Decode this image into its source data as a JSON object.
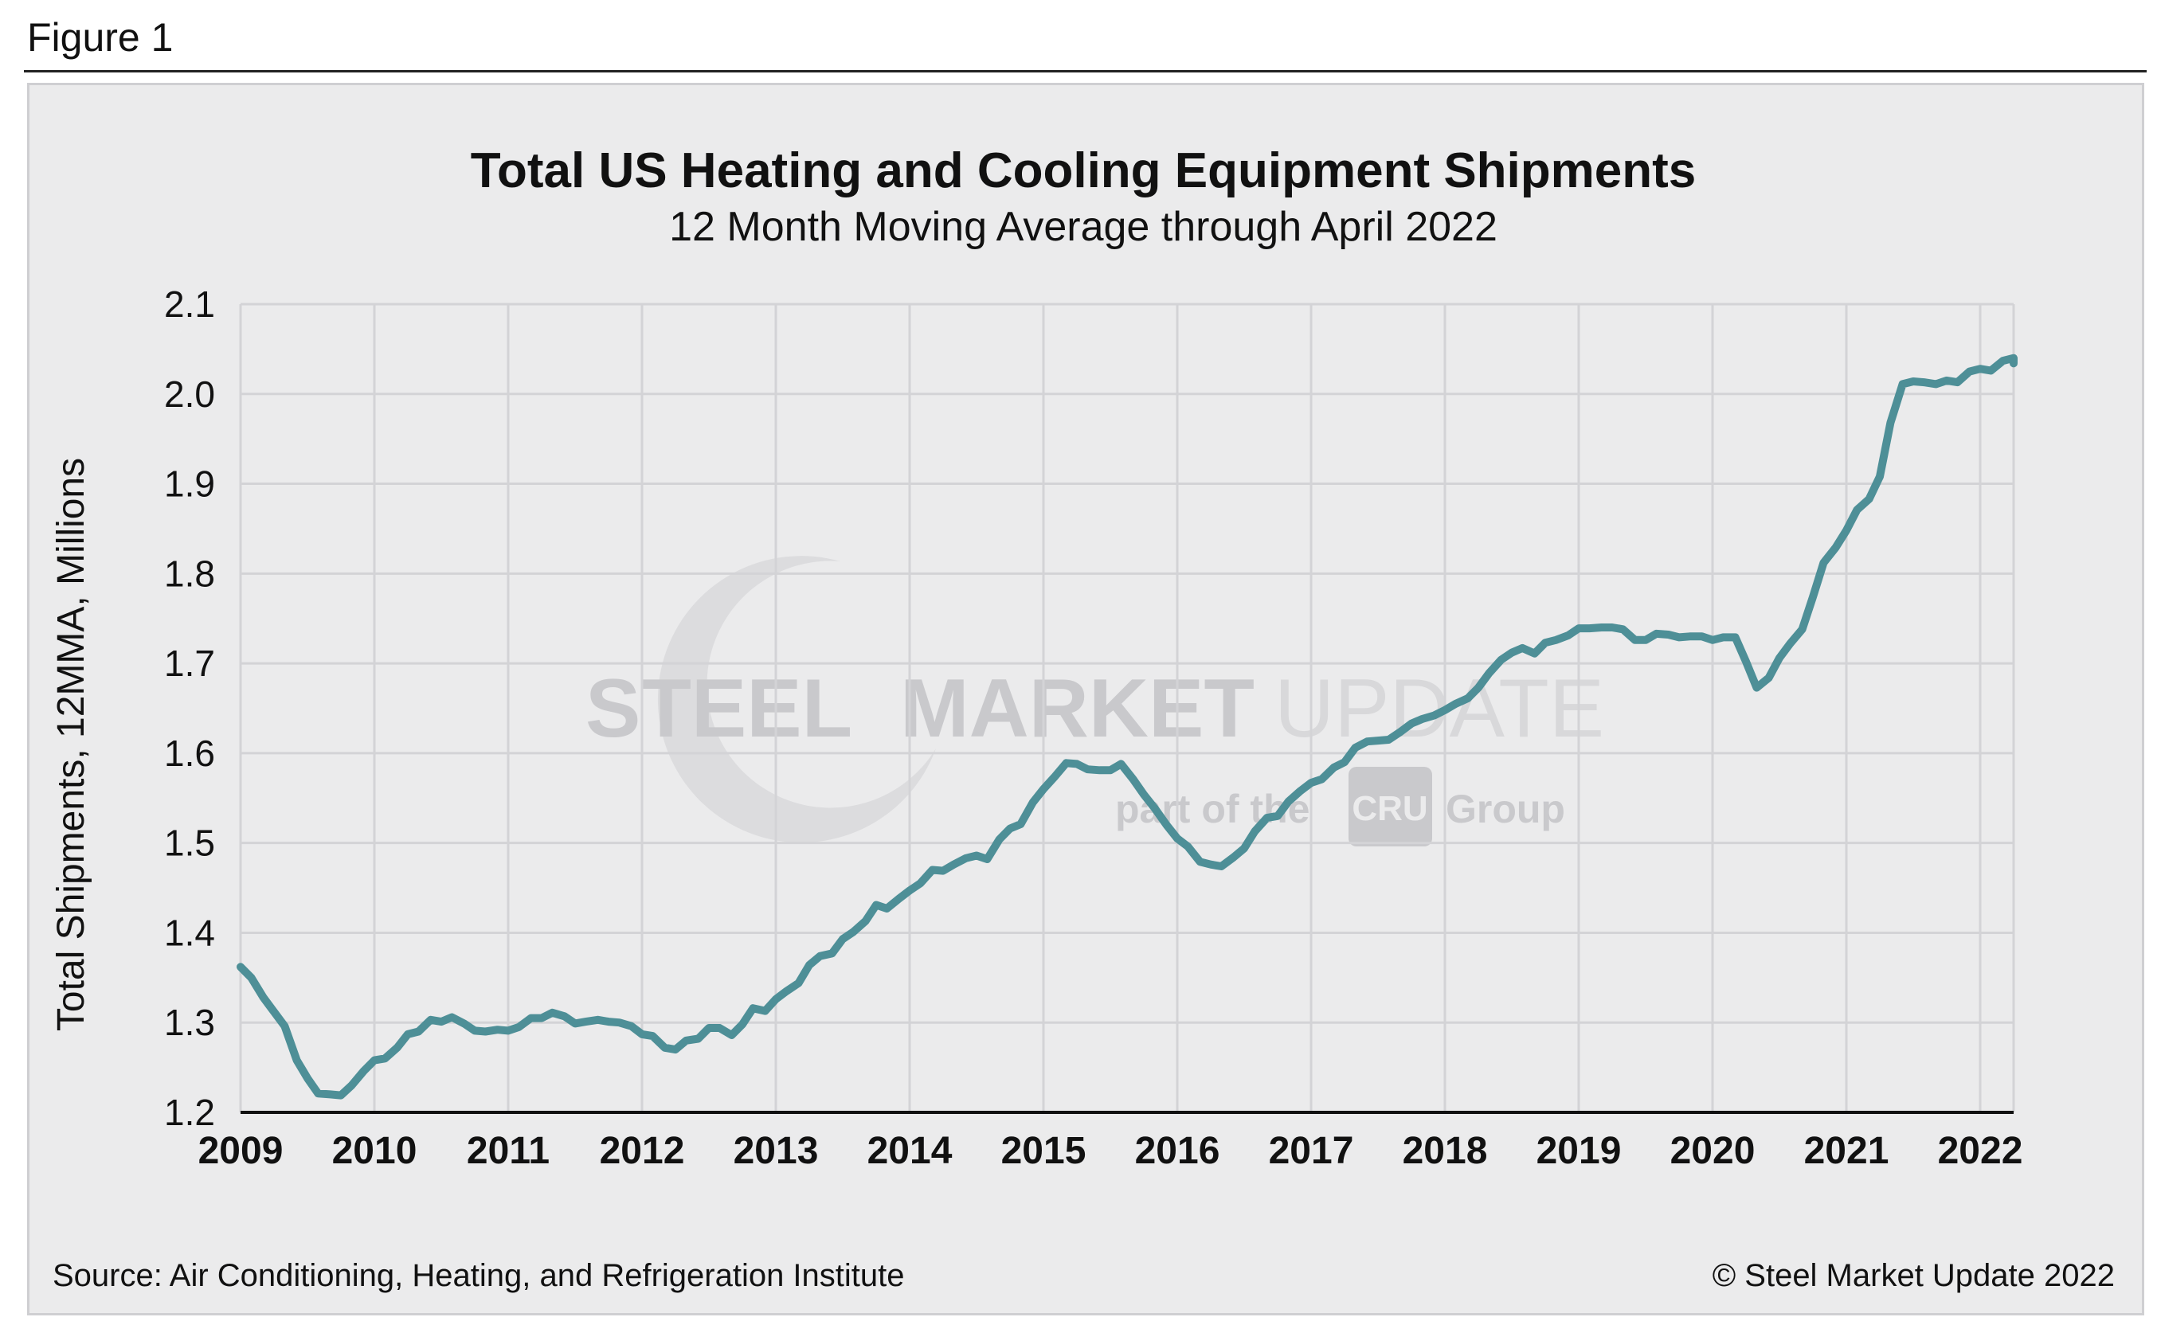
{
  "figure_label": "Figure 1",
  "footer": {
    "source": "Source: Air Conditioning, Heating, and Refrigeration Institute",
    "copyright": "© Steel Market Update 2022"
  },
  "watermark": {
    "word1": "STEEL",
    "word2": "MARKET",
    "word3": "UPDATE",
    "sub_left": "part of the",
    "sub_logo": "CRU",
    "sub_right": "Group"
  },
  "colors": {
    "line": "#4e8f97",
    "plot_bg": "#ebebec",
    "grid": "#d3d3d6",
    "axis": "#111111"
  },
  "chart_data": {
    "type": "line",
    "title": "Total US Heating and Cooling Equipment Shipments",
    "subtitle": "12 Month Moving Average through April 2022",
    "ylabel": "Total Shipments, 12MMA, Millions",
    "xlabel": "",
    "ylim": [
      1.2,
      2.1
    ],
    "yticks": [
      "1.2",
      "1.3",
      "1.4",
      "1.5",
      "1.6",
      "1.7",
      "1.8",
      "1.9",
      "2.0",
      "2.1"
    ],
    "xlim": [
      2009.0,
      2022.25
    ],
    "xticks": [
      "2009",
      "2010",
      "2011",
      "2012",
      "2013",
      "2014",
      "2015",
      "2016",
      "2017",
      "2018",
      "2019",
      "2020",
      "2021",
      "2022"
    ],
    "grid": true,
    "series": [
      {
        "points": [
          [
            2009.0,
            1.362
          ],
          [
            2009.08,
            1.35
          ],
          [
            2009.17,
            1.328
          ],
          [
            2009.25,
            1.312
          ],
          [
            2009.33,
            1.296
          ],
          [
            2009.42,
            1.258
          ],
          [
            2009.5,
            1.238
          ],
          [
            2009.58,
            1.221
          ],
          [
            2009.67,
            1.22
          ],
          [
            2009.75,
            1.219
          ],
          [
            2009.83,
            1.23
          ],
          [
            2009.92,
            1.246
          ],
          [
            2010.0,
            1.258
          ],
          [
            2010.08,
            1.26
          ],
          [
            2010.17,
            1.272
          ],
          [
            2010.25,
            1.287
          ],
          [
            2010.33,
            1.29
          ],
          [
            2010.42,
            1.303
          ],
          [
            2010.5,
            1.301
          ],
          [
            2010.58,
            1.306
          ],
          [
            2010.67,
            1.299
          ],
          [
            2010.75,
            1.291
          ],
          [
            2010.83,
            1.29
          ],
          [
            2010.92,
            1.292
          ],
          [
            2011.0,
            1.291
          ],
          [
            2011.08,
            1.295
          ],
          [
            2011.17,
            1.305
          ],
          [
            2011.25,
            1.305
          ],
          [
            2011.33,
            1.311
          ],
          [
            2011.42,
            1.307
          ],
          [
            2011.5,
            1.299
          ],
          [
            2011.58,
            1.301
          ],
          [
            2011.67,
            1.303
          ],
          [
            2011.75,
            1.301
          ],
          [
            2011.83,
            1.3
          ],
          [
            2011.92,
            1.296
          ],
          [
            2012.0,
            1.287
          ],
          [
            2012.08,
            1.285
          ],
          [
            2012.17,
            1.272
          ],
          [
            2012.25,
            1.27
          ],
          [
            2012.33,
            1.28
          ],
          [
            2012.42,
            1.282
          ],
          [
            2012.5,
            1.294
          ],
          [
            2012.58,
            1.294
          ],
          [
            2012.67,
            1.286
          ],
          [
            2012.75,
            1.298
          ],
          [
            2012.83,
            1.316
          ],
          [
            2012.92,
            1.313
          ],
          [
            2013.0,
            1.326
          ],
          [
            2013.08,
            1.335
          ],
          [
            2013.17,
            1.344
          ],
          [
            2013.25,
            1.364
          ],
          [
            2013.33,
            1.374
          ],
          [
            2013.42,
            1.377
          ],
          [
            2013.5,
            1.393
          ],
          [
            2013.58,
            1.401
          ],
          [
            2013.67,
            1.413
          ],
          [
            2013.75,
            1.431
          ],
          [
            2013.83,
            1.427
          ],
          [
            2013.92,
            1.438
          ],
          [
            2014.0,
            1.447
          ],
          [
            2014.08,
            1.455
          ],
          [
            2014.17,
            1.47
          ],
          [
            2014.25,
            1.469
          ],
          [
            2014.33,
            1.476
          ],
          [
            2014.42,
            1.483
          ],
          [
            2014.5,
            1.486
          ],
          [
            2014.58,
            1.482
          ],
          [
            2014.67,
            1.504
          ],
          [
            2014.75,
            1.516
          ],
          [
            2014.83,
            1.521
          ],
          [
            2014.92,
            1.545
          ],
          [
            2015.0,
            1.56
          ],
          [
            2015.08,
            1.573
          ],
          [
            2015.17,
            1.589
          ],
          [
            2015.25,
            1.588
          ],
          [
            2015.33,
            1.582
          ],
          [
            2015.42,
            1.581
          ],
          [
            2015.5,
            1.581
          ],
          [
            2015.58,
            1.588
          ],
          [
            2015.67,
            1.571
          ],
          [
            2015.75,
            1.554
          ],
          [
            2015.83,
            1.539
          ],
          [
            2015.92,
            1.52
          ],
          [
            2016.0,
            1.505
          ],
          [
            2016.08,
            1.496
          ],
          [
            2016.17,
            1.479
          ],
          [
            2016.25,
            1.476
          ],
          [
            2016.33,
            1.474
          ],
          [
            2016.42,
            1.484
          ],
          [
            2016.5,
            1.494
          ],
          [
            2016.58,
            1.513
          ],
          [
            2016.67,
            1.528
          ],
          [
            2016.75,
            1.53
          ],
          [
            2016.83,
            1.546
          ],
          [
            2016.92,
            1.558
          ],
          [
            2017.0,
            1.567
          ],
          [
            2017.08,
            1.571
          ],
          [
            2017.17,
            1.584
          ],
          [
            2017.25,
            1.59
          ],
          [
            2017.33,
            1.606
          ],
          [
            2017.42,
            1.613
          ],
          [
            2017.5,
            1.614
          ],
          [
            2017.58,
            1.615
          ],
          [
            2017.67,
            1.624
          ],
          [
            2017.75,
            1.633
          ],
          [
            2017.83,
            1.638
          ],
          [
            2017.92,
            1.642
          ],
          [
            2018.0,
            1.648
          ],
          [
            2018.08,
            1.655
          ],
          [
            2018.17,
            1.661
          ],
          [
            2018.25,
            1.673
          ],
          [
            2018.33,
            1.689
          ],
          [
            2018.42,
            1.704
          ],
          [
            2018.5,
            1.712
          ],
          [
            2018.58,
            1.717
          ],
          [
            2018.67,
            1.711
          ],
          [
            2018.75,
            1.723
          ],
          [
            2018.83,
            1.726
          ],
          [
            2018.92,
            1.731
          ],
          [
            2019.0,
            1.739
          ],
          [
            2019.08,
            1.739
          ],
          [
            2019.17,
            1.74
          ],
          [
            2019.25,
            1.74
          ],
          [
            2019.33,
            1.738
          ],
          [
            2019.42,
            1.726
          ],
          [
            2019.5,
            1.726
          ],
          [
            2019.58,
            1.733
          ],
          [
            2019.67,
            1.732
          ],
          [
            2019.75,
            1.729
          ],
          [
            2019.83,
            1.73
          ],
          [
            2019.92,
            1.73
          ],
          [
            2020.0,
            1.726
          ],
          [
            2020.08,
            1.729
          ],
          [
            2020.17,
            1.729
          ],
          [
            2020.25,
            1.702
          ],
          [
            2020.33,
            1.673
          ],
          [
            2020.42,
            1.684
          ],
          [
            2020.5,
            1.706
          ],
          [
            2020.58,
            1.722
          ],
          [
            2020.67,
            1.738
          ],
          [
            2020.75,
            1.774
          ],
          [
            2020.83,
            1.812
          ],
          [
            2020.92,
            1.829
          ],
          [
            2021.0,
            1.848
          ],
          [
            2021.08,
            1.871
          ],
          [
            2021.17,
            1.883
          ],
          [
            2021.25,
            1.908
          ],
          [
            2021.33,
            1.968
          ],
          [
            2021.42,
            2.011
          ],
          [
            2021.5,
            2.014
          ],
          [
            2021.58,
            2.013
          ],
          [
            2021.67,
            2.011
          ],
          [
            2021.75,
            2.015
          ],
          [
            2021.83,
            2.013
          ],
          [
            2021.92,
            2.025
          ],
          [
            2022.0,
            2.028
          ],
          [
            2022.08,
            2.026
          ],
          [
            2022.17,
            2.037
          ],
          [
            2022.25,
            2.04
          ],
          [
            2022.33,
            2.034
          ]
        ]
      }
    ]
  }
}
